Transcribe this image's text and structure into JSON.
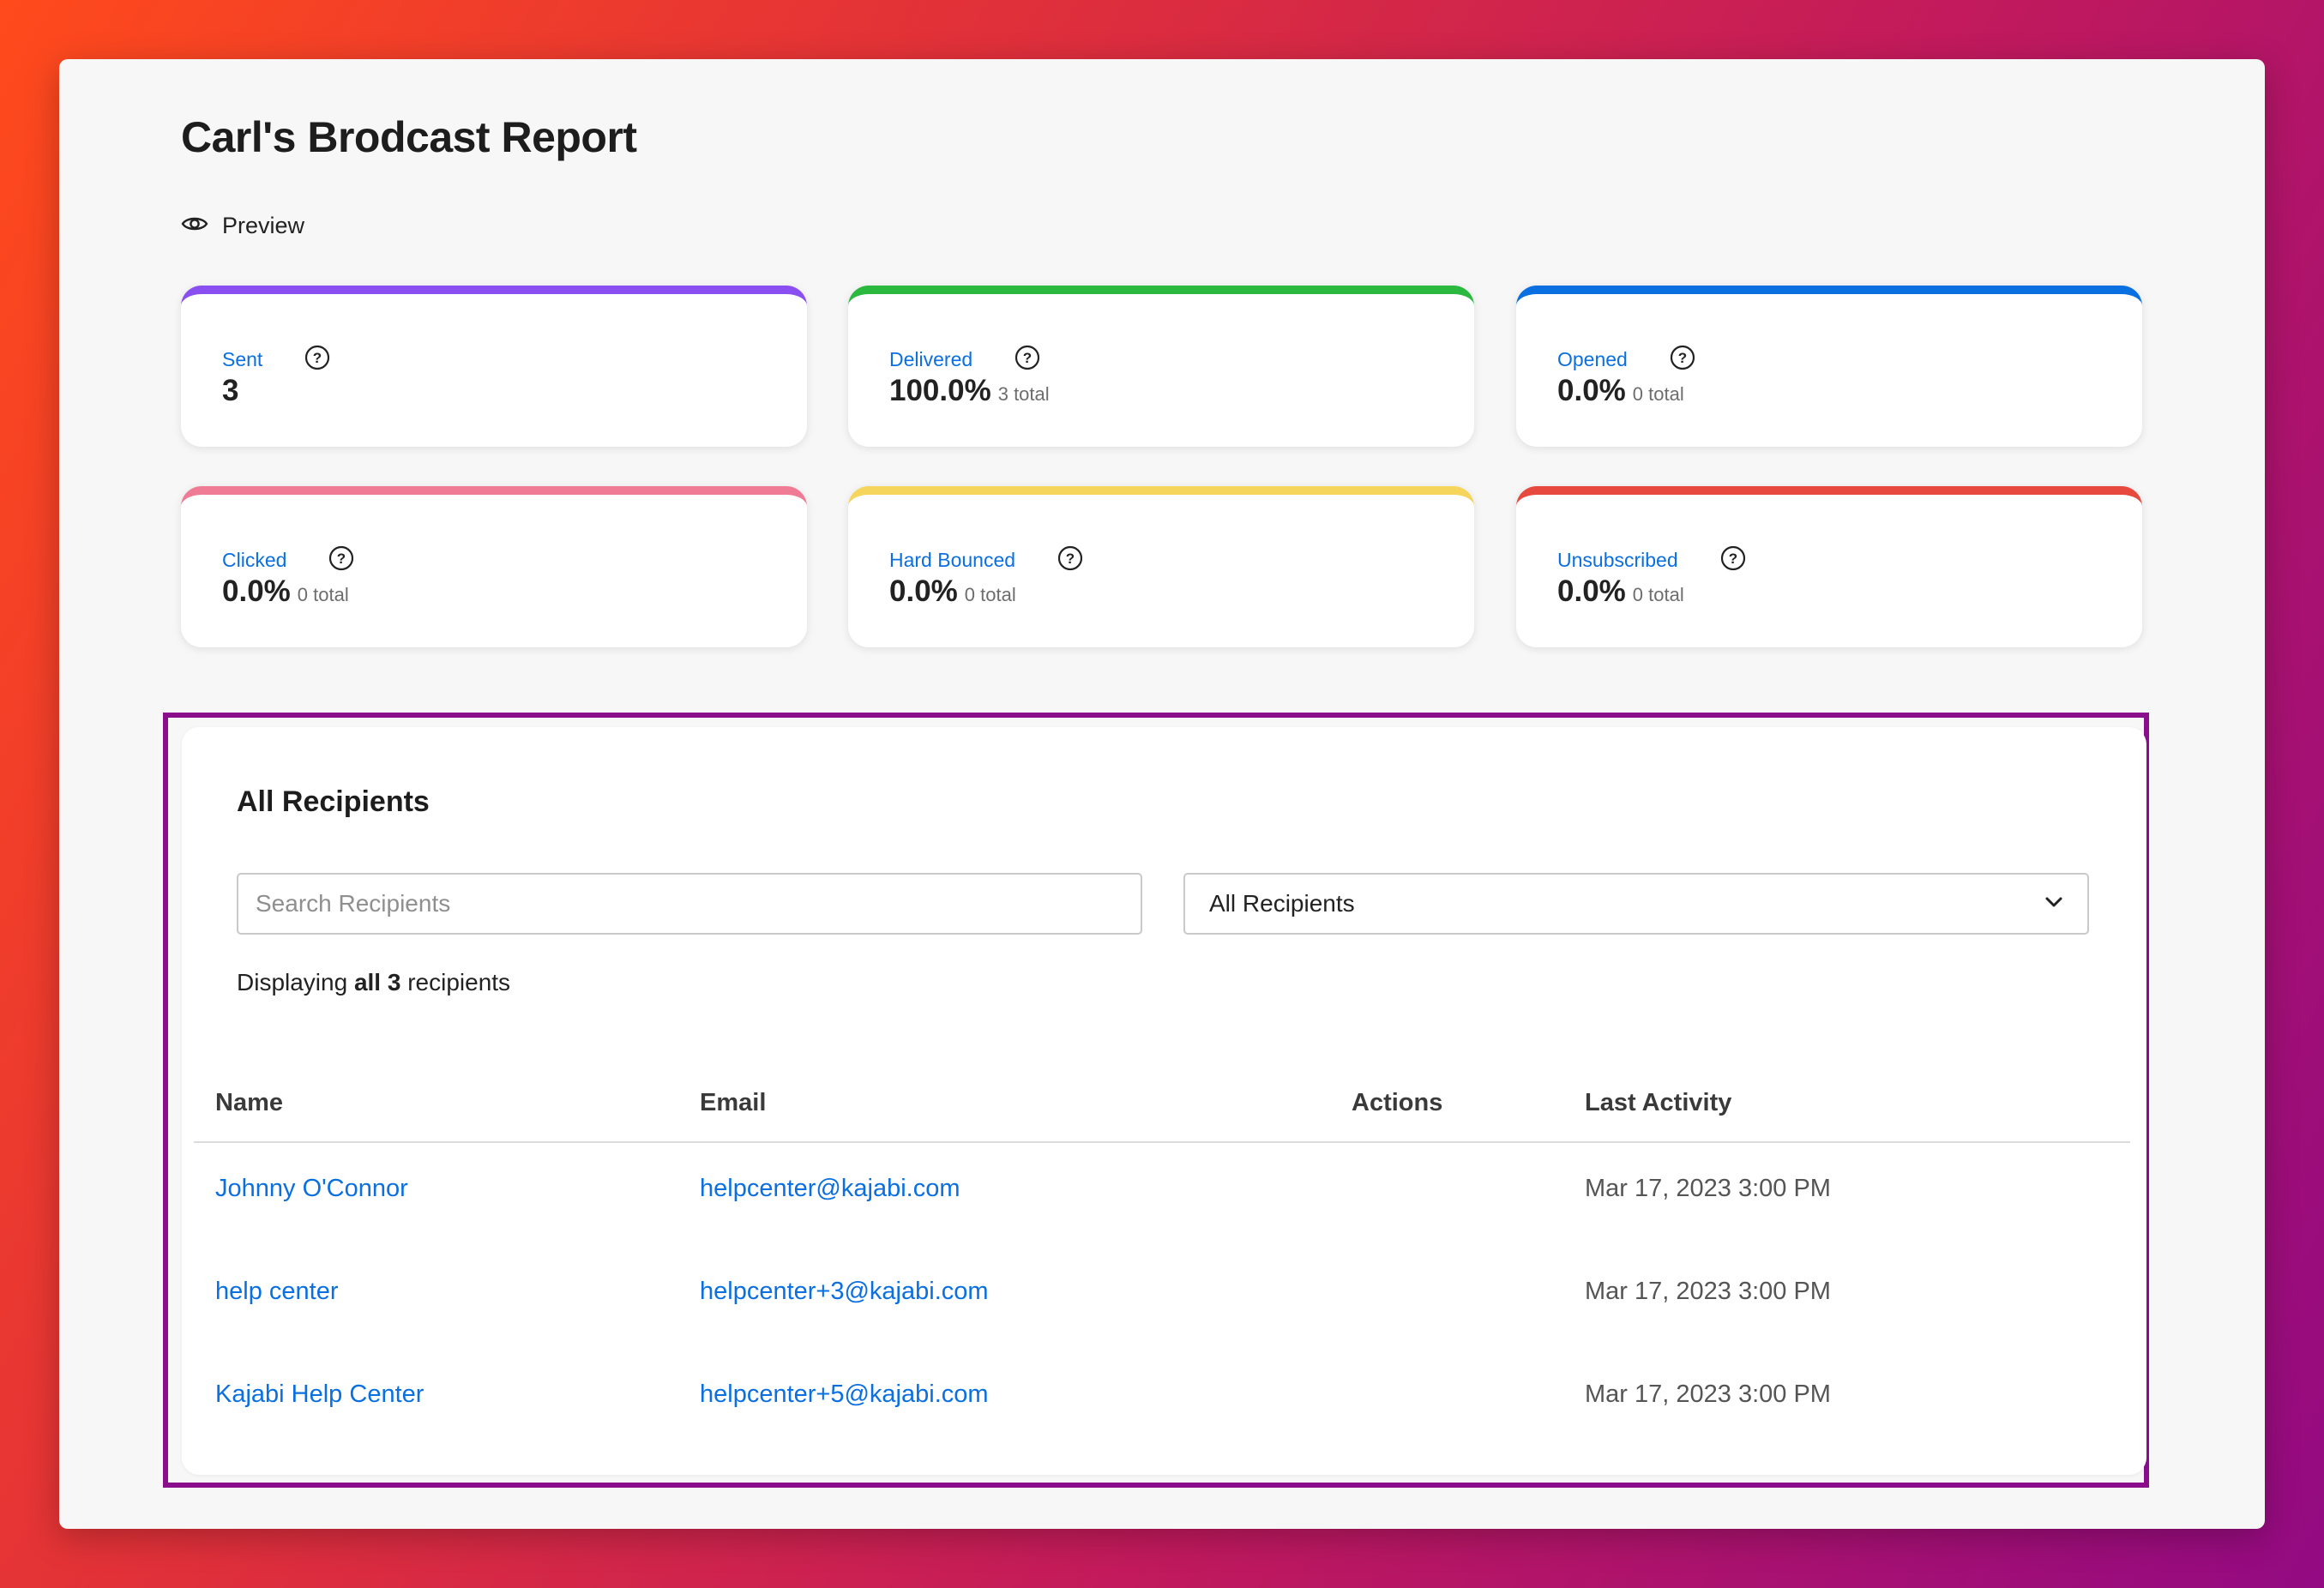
{
  "page": {
    "title": "Carl's Brodcast Report",
    "preview_label": "Preview"
  },
  "stats": [
    {
      "label": "Sent",
      "value": "3",
      "sub": "",
      "color": "#8a4ff0"
    },
    {
      "label": "Delivered",
      "value": "100.0%",
      "sub": "3 total",
      "color": "#2bb83f"
    },
    {
      "label": "Opened",
      "value": "0.0%",
      "sub": "0 total",
      "color": "#0a6fe0"
    },
    {
      "label": "Clicked",
      "value": "0.0%",
      "sub": "0 total",
      "color": "#ef7b95"
    },
    {
      "label": "Hard Bounced",
      "value": "0.0%",
      "sub": "0 total",
      "color": "#f6d55c"
    },
    {
      "label": "Unsubscribed",
      "value": "0.0%",
      "sub": "0 total",
      "color": "#e8493e"
    }
  ],
  "recipients": {
    "title": "All Recipients",
    "search_placeholder": "Search Recipients",
    "filter_value": "All Recipients",
    "summary_prefix": "Displaying",
    "summary_bold": "all 3",
    "summary_suffix": "recipients",
    "columns": {
      "name": "Name",
      "email": "Email",
      "actions": "Actions",
      "last_activity": "Last Activity"
    },
    "rows": [
      {
        "name": "Johnny O'Connor",
        "email": "helpcenter@kajabi.com",
        "last_activity": "Mar 17, 2023 3:00 PM"
      },
      {
        "name": "help center",
        "email": "helpcenter+3@kajabi.com",
        "last_activity": "Mar 17, 2023 3:00 PM"
      },
      {
        "name": "Kajabi Help Center",
        "email": "helpcenter+5@kajabi.com",
        "last_activity": "Mar 17, 2023 3:00 PM"
      }
    ]
  },
  "colors": {
    "link": "#0a6fe0",
    "highlight_border": "#8a0d8c"
  }
}
